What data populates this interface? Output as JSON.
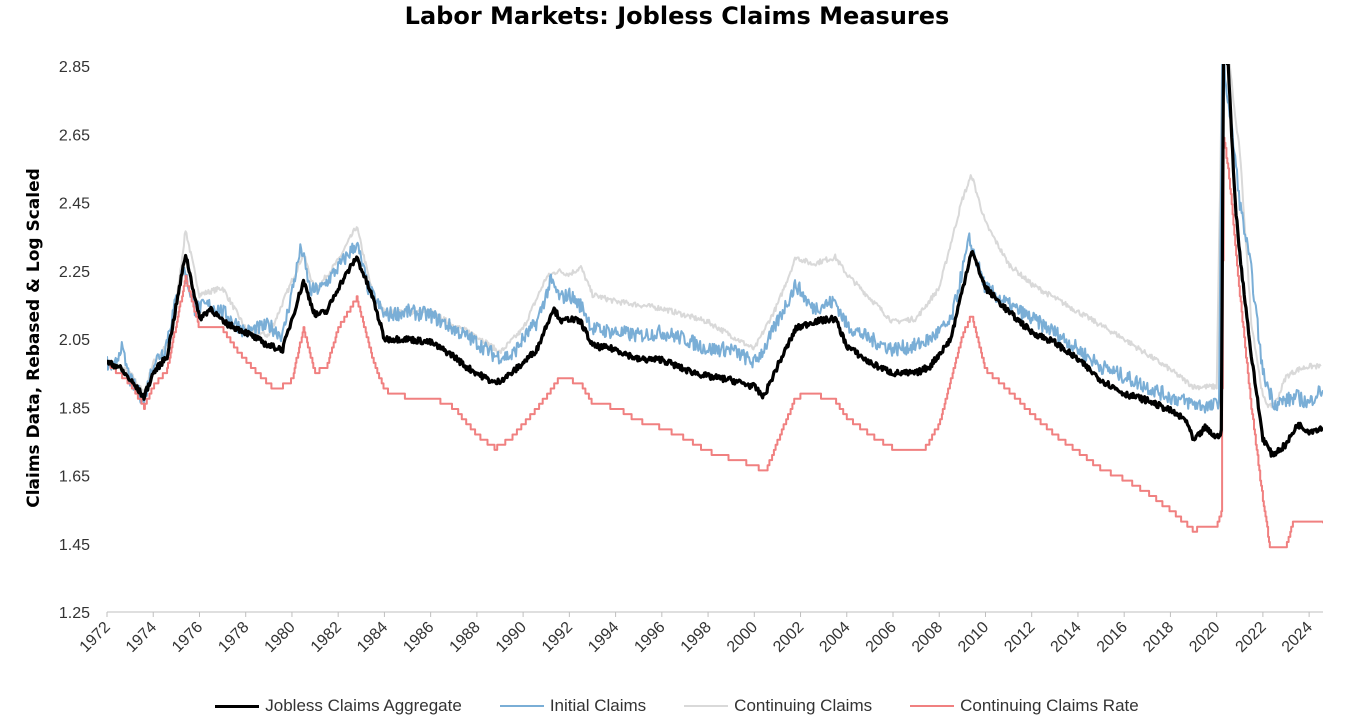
{
  "chart_data": {
    "type": "line",
    "title": "Labor Markets: Jobless Claims Measures",
    "ylabel": "Claims Data, Rebased & Log Scaled",
    "xlabel": "",
    "ylim": [
      1.25,
      2.85
    ],
    "xlim": [
      1972,
      2024.6
    ],
    "yticks": [
      "2.85",
      "2.65",
      "2.45",
      "2.25",
      "2.05",
      "1.85",
      "1.65",
      "1.45",
      "1.25"
    ],
    "xticks": [
      "1972",
      "1974",
      "1976",
      "1978",
      "1980",
      "1982",
      "1984",
      "1986",
      "1988",
      "1990",
      "1992",
      "1994",
      "1996",
      "1998",
      "2000",
      "2002",
      "2004",
      "2006",
      "2008",
      "2010",
      "2012",
      "2014",
      "2016",
      "2018",
      "2020",
      "2022",
      "2024"
    ],
    "legend_position": "bottom",
    "series": [
      {
        "name": "Continuing Claims",
        "color": "#d9d9d9",
        "width": 2,
        "x": [
          1972,
          1972.5,
          1973,
          1973.6,
          1974,
          1974.8,
          1975.4,
          1976,
          1977,
          1978,
          1979,
          1980.5,
          1981,
          1982,
          1982.8,
          1983.5,
          1984,
          1986,
          1987,
          1988,
          1989,
          1990,
          1991,
          1991.5,
          1992,
          1992.5,
          1993,
          1994,
          1996,
          1998,
          2000,
          2001,
          2001.8,
          2002.5,
          2003.5,
          2004,
          2005,
          2006,
          2007,
          2008,
          2009,
          2009.4,
          2010,
          2011,
          2012,
          2014,
          2016,
          2018,
          2019,
          2020,
          2020.25,
          2020.35,
          2020.5,
          2020.8,
          2021,
          2021.5,
          2022,
          2022.3,
          2022.6,
          2023,
          2023.5,
          2024,
          2024.5
        ],
        "y": [
          1.98,
          1.97,
          1.95,
          1.89,
          1.98,
          2.05,
          2.37,
          2.18,
          2.2,
          2.08,
          2.06,
          2.3,
          2.19,
          2.28,
          2.38,
          2.18,
          2.13,
          2.13,
          2.09,
          2.06,
          2.01,
          2.08,
          2.23,
          2.25,
          2.24,
          2.26,
          2.18,
          2.16,
          2.14,
          2.1,
          2.02,
          2.15,
          2.29,
          2.27,
          2.29,
          2.24,
          2.17,
          2.1,
          2.11,
          2.2,
          2.46,
          2.53,
          2.39,
          2.27,
          2.21,
          2.13,
          2.05,
          1.96,
          1.91,
          1.91,
          2.9,
          2.92,
          2.9,
          2.7,
          2.6,
          2.1,
          1.88,
          1.85,
          1.87,
          1.94,
          1.96,
          1.97,
          1.97
        ]
      },
      {
        "name": "Initial Claims",
        "color": "#7aaed6",
        "width": 2,
        "x": [
          1972,
          1972.3,
          1972.6,
          1973,
          1973.6,
          1974,
          1974.5,
          1975.3,
          1975.8,
          1976.5,
          1977,
          1978,
          1979,
          1979.6,
          1980.4,
          1980.8,
          1981.3,
          1982,
          1982.8,
          1983.3,
          1984,
          1985,
          1986,
          1987,
          1988,
          1988.8,
          1989.5,
          1990,
          1990.6,
          1991.2,
          1991.6,
          1992,
          1992.6,
          1993,
          1994,
          1995,
          1996,
          1997,
          1998,
          1999,
          2000,
          2000.5,
          2001,
          2001.8,
          2002.5,
          2003.5,
          2004,
          2005,
          2006,
          2007,
          2007.6,
          2008.5,
          2009.3,
          2010,
          2011,
          2012,
          2013,
          2014,
          2015,
          2016,
          2017,
          2018,
          2019,
          2019.8,
          2020.1,
          2020.25,
          2020.4,
          2020.8,
          2021,
          2021.5,
          2022,
          2022.5,
          2023,
          2023.5,
          2024,
          2024.3,
          2024.6
        ],
        "y": [
          1.98,
          1.96,
          2.03,
          1.93,
          1.87,
          1.98,
          2.02,
          2.26,
          2.14,
          2.15,
          2.13,
          2.07,
          2.09,
          2.06,
          2.32,
          2.19,
          2.2,
          2.26,
          2.33,
          2.2,
          2.12,
          2.13,
          2.12,
          2.08,
          2.04,
          2.0,
          2.0,
          2.05,
          2.1,
          2.22,
          2.17,
          2.18,
          2.14,
          2.08,
          2.07,
          2.06,
          2.07,
          2.05,
          2.02,
          2.02,
          1.98,
          2.03,
          2.1,
          2.21,
          2.14,
          2.16,
          2.09,
          2.05,
          2.02,
          2.03,
          2.05,
          2.1,
          2.34,
          2.2,
          2.15,
          2.11,
          2.07,
          2.02,
          1.97,
          1.94,
          1.91,
          1.88,
          1.86,
          1.85,
          1.87,
          2.9,
          2.8,
          2.58,
          2.45,
          2.25,
          1.95,
          1.86,
          1.87,
          1.88,
          1.86,
          1.89,
          1.9
        ]
      },
      {
        "name": "Continuing Claims Rate",
        "color": "#f08080",
        "width": 2,
        "x": [
          1972,
          1972.5,
          1973,
          1973.6,
          1974,
          1974.6,
          1975.4,
          1976,
          1977,
          1977.6,
          1978.5,
          1979.3,
          1980,
          1980.5,
          1981,
          1981.5,
          1982,
          1982.8,
          1983.5,
          1984,
          1985,
          1986,
          1987,
          1987.5,
          1988,
          1988.8,
          1989.5,
          1990,
          1991,
          1991.5,
          1992,
          1992.5,
          1993,
          1994,
          1995,
          1996,
          1997,
          1998,
          1999,
          2000,
          2000.5,
          2001,
          2001.8,
          2002.5,
          2003.5,
          2004,
          2005,
          2006,
          2006.5,
          2007.3,
          2008,
          2009,
          2009.4,
          2010,
          2011,
          2012,
          2013,
          2014,
          2015,
          2016,
          2017,
          2018,
          2018.5,
          2019,
          2019.5,
          2020,
          2020.2,
          2020.3,
          2020.5,
          2020.8,
          2021,
          2021.5,
          2022,
          2022.3,
          2023,
          2023.3,
          2024,
          2024.6
        ],
        "y": [
          1.98,
          1.95,
          1.92,
          1.85,
          1.91,
          1.96,
          2.23,
          2.08,
          2.08,
          2.02,
          1.95,
          1.9,
          1.93,
          2.08,
          1.95,
          1.97,
          2.08,
          2.17,
          1.99,
          1.9,
          1.88,
          1.88,
          1.85,
          1.81,
          1.77,
          1.73,
          1.76,
          1.8,
          1.88,
          1.93,
          1.93,
          1.92,
          1.86,
          1.85,
          1.81,
          1.79,
          1.76,
          1.72,
          1.7,
          1.68,
          1.66,
          1.75,
          1.88,
          1.89,
          1.87,
          1.82,
          1.77,
          1.73,
          1.72,
          1.72,
          1.8,
          2.06,
          2.12,
          1.96,
          1.9,
          1.83,
          1.77,
          1.72,
          1.67,
          1.64,
          1.6,
          1.55,
          1.52,
          1.49,
          1.5,
          1.5,
          1.54,
          2.64,
          2.55,
          2.33,
          2.18,
          1.85,
          1.58,
          1.44,
          1.44,
          1.51,
          1.51,
          1.51
        ]
      },
      {
        "name": "Jobless Claims Aggregate",
        "color": "#000000",
        "width": 3.2,
        "x": [
          1972,
          1972.5,
          1973,
          1973.6,
          1974,
          1974.6,
          1975.4,
          1976,
          1976.5,
          1977,
          1978,
          1979,
          1979.6,
          1980.5,
          1981,
          1981.5,
          1982,
          1982.8,
          1983.5,
          1984,
          1985,
          1986,
          1987,
          1987.5,
          1988,
          1988.8,
          1989.5,
          1990,
          1990.6,
          1991.3,
          1991.7,
          1992,
          1992.5,
          1993,
          1994,
          1995,
          1996,
          1997,
          1998,
          1999,
          2000,
          2000.4,
          2001,
          2001.8,
          2002.5,
          2003.5,
          2004,
          2005,
          2006,
          2007,
          2007.6,
          2008.5,
          2009.4,
          2010,
          2011,
          2012,
          2013,
          2014,
          2015,
          2016,
          2017,
          2018,
          2018.7,
          2019,
          2019.5,
          2020,
          2020.2,
          2020.3,
          2020.5,
          2020.8,
          2021,
          2021.5,
          2022,
          2022.4,
          2023,
          2023.5,
          2024,
          2024.6
        ],
        "y": [
          1.98,
          1.97,
          1.93,
          1.88,
          1.95,
          2.0,
          2.3,
          2.11,
          2.14,
          2.1,
          2.07,
          2.03,
          2.02,
          2.22,
          2.12,
          2.13,
          2.2,
          2.29,
          2.17,
          2.05,
          2.05,
          2.04,
          2.0,
          1.97,
          1.95,
          1.92,
          1.95,
          1.98,
          2.02,
          2.14,
          2.1,
          2.11,
          2.1,
          2.03,
          2.02,
          1.99,
          1.99,
          1.96,
          1.94,
          1.93,
          1.91,
          1.88,
          1.97,
          2.08,
          2.1,
          2.11,
          2.03,
          1.98,
          1.95,
          1.95,
          1.97,
          2.05,
          2.31,
          2.2,
          2.13,
          2.07,
          2.04,
          1.99,
          1.93,
          1.89,
          1.87,
          1.84,
          1.81,
          1.75,
          1.79,
          1.76,
          1.78,
          2.9,
          2.85,
          2.45,
          2.3,
          2.0,
          1.76,
          1.71,
          1.74,
          1.8,
          1.78,
          1.79
        ]
      }
    ]
  },
  "legend": [
    {
      "label": "Jobless Claims Aggregate",
      "color": "#000000",
      "width": 3
    },
    {
      "label": "Initial Claims",
      "color": "#7aaed6",
      "width": 2
    },
    {
      "label": "Continuing Claims",
      "color": "#d9d9d9",
      "width": 2
    },
    {
      "label": "Continuing Claims Rate",
      "color": "#f08080",
      "width": 2
    }
  ]
}
